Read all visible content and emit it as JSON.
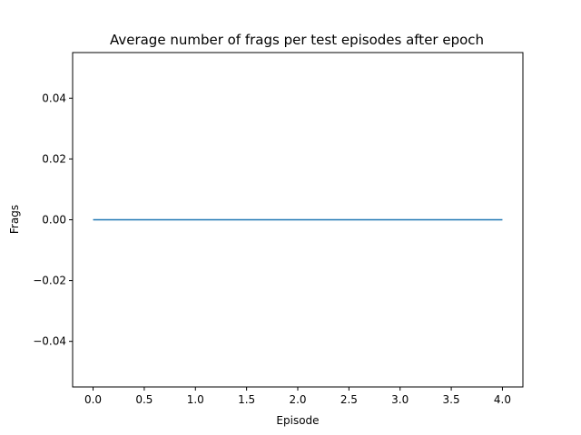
{
  "chart_data": {
    "type": "line",
    "title": "Average number of frags per test episodes after epoch",
    "xlabel": "Episode",
    "ylabel": "Frags",
    "xlim": [
      -0.2,
      4.2
    ],
    "ylim": [
      -0.055,
      0.055
    ],
    "xticks": [
      0.0,
      0.5,
      1.0,
      1.5,
      2.0,
      2.5,
      3.0,
      3.5,
      4.0
    ],
    "xtick_labels": [
      "0.0",
      "0.5",
      "1.0",
      "1.5",
      "2.0",
      "2.5",
      "3.0",
      "3.5",
      "4.0"
    ],
    "yticks": [
      -0.04,
      -0.02,
      0.0,
      0.02,
      0.04
    ],
    "ytick_labels": [
      "−0.04",
      "−0.02",
      "0.00",
      "0.02",
      "0.04"
    ],
    "grid": false,
    "series": [
      {
        "color": "#1f77b4",
        "x": [
          0,
          1,
          2,
          3,
          4
        ],
        "y": [
          0,
          0,
          0,
          0,
          0
        ]
      }
    ]
  }
}
